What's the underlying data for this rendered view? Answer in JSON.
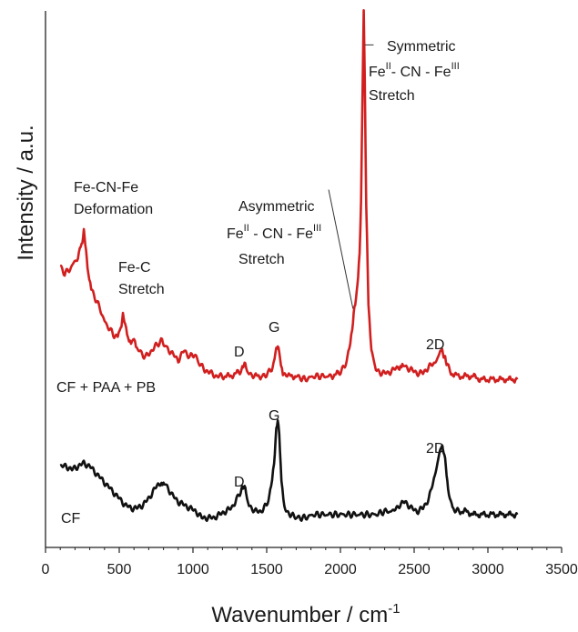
{
  "chart_data": {
    "type": "line",
    "xlabel": "Wavenumber / cm",
    "xlabel_sup": "-1",
    "ylabel": "Intensity / a.u.",
    "xlim": [
      0,
      3500
    ],
    "xticks": [
      "0",
      "500",
      "1000",
      "1500",
      "2000",
      "2500",
      "3000",
      "3500"
    ],
    "y_tick_labels": "none",
    "grid": false,
    "colors": {
      "pb": "#d11f1f",
      "cf": "#111111",
      "axis": "#222222",
      "leader": "#333333"
    },
    "series": [
      {
        "key": "pb",
        "name": "CF + PAA + PB",
        "baseline": 0.46,
        "x": [
          100,
          130,
          160,
          190,
          220,
          245,
          260,
          275,
          290,
          310,
          340,
          370,
          400,
          430,
          460,
          490,
          510,
          525,
          540,
          560,
          580,
          600,
          620,
          650,
          680,
          720,
          760,
          790,
          820,
          860,
          900,
          940,
          980,
          1010,
          1040,
          1080,
          1120,
          1160,
          1200,
          1250,
          1300,
          1330,
          1345,
          1360,
          1380,
          1420,
          1470,
          1510,
          1540,
          1560,
          1575,
          1590,
          1610,
          1650,
          1700,
          1760,
          1820,
          1880,
          1940,
          1990,
          2030,
          2060,
          2080,
          2095,
          2110,
          2120,
          2130,
          2140,
          2150,
          2158,
          2165,
          2175,
          2190,
          2210,
          2240,
          2280,
          2320,
          2360,
          2400,
          2420,
          2440,
          2480,
          2520,
          2560,
          2600,
          2640,
          2670,
          2690,
          2705,
          2720,
          2750,
          2800,
          2850,
          2900,
          2950,
          3000,
          3050,
          3100,
          3150,
          3200
        ],
        "y": [
          0.81,
          0.79,
          0.8,
          0.82,
          0.84,
          0.88,
          0.92,
          0.86,
          0.79,
          0.74,
          0.71,
          0.68,
          0.64,
          0.62,
          0.6,
          0.59,
          0.62,
          0.66,
          0.63,
          0.58,
          0.57,
          0.59,
          0.56,
          0.54,
          0.53,
          0.55,
          0.57,
          0.58,
          0.56,
          0.54,
          0.52,
          0.55,
          0.53,
          0.54,
          0.51,
          0.49,
          0.48,
          0.47,
          0.47,
          0.47,
          0.48,
          0.49,
          0.51,
          0.5,
          0.48,
          0.47,
          0.47,
          0.48,
          0.5,
          0.54,
          0.57,
          0.53,
          0.48,
          0.47,
          0.47,
          0.46,
          0.47,
          0.47,
          0.47,
          0.48,
          0.5,
          0.55,
          0.62,
          0.68,
          0.73,
          0.78,
          0.85,
          1.02,
          1.35,
          1.6,
          1.4,
          1.0,
          0.7,
          0.55,
          0.49,
          0.48,
          0.48,
          0.49,
          0.5,
          0.51,
          0.5,
          0.49,
          0.48,
          0.48,
          0.5,
          0.51,
          0.54,
          0.55,
          0.53,
          0.51,
          0.48,
          0.47,
          0.47,
          0.47,
          0.46,
          0.46,
          0.46,
          0.46,
          0.46,
          0.46
        ]
      },
      {
        "key": "cf",
        "name": "CF",
        "baseline": 0.03,
        "x": [
          100,
          140,
          180,
          220,
          260,
          300,
          340,
          380,
          420,
          460,
          500,
          540,
          580,
          620,
          660,
          700,
          740,
          780,
          800,
          820,
          860,
          900,
          940,
          980,
          1020,
          1060,
          1100,
          1140,
          1180,
          1220,
          1260,
          1300,
          1330,
          1345,
          1360,
          1380,
          1420,
          1460,
          1500,
          1530,
          1550,
          1565,
          1575,
          1585,
          1600,
          1620,
          1660,
          1700,
          1760,
          1820,
          1880,
          1940,
          2000,
          2060,
          2120,
          2180,
          2240,
          2300,
          2360,
          2400,
          2440,
          2480,
          2520,
          2560,
          2600,
          2640,
          2670,
          2690,
          2700,
          2715,
          2730,
          2760,
          2800,
          2850,
          2900,
          2950,
          3000,
          3050,
          3100,
          3150,
          3200
        ],
        "y": [
          0.19,
          0.19,
          0.18,
          0.19,
          0.2,
          0.19,
          0.17,
          0.15,
          0.13,
          0.11,
          0.09,
          0.07,
          0.06,
          0.06,
          0.07,
          0.09,
          0.12,
          0.14,
          0.14,
          0.13,
          0.1,
          0.08,
          0.07,
          0.06,
          0.05,
          0.03,
          0.03,
          0.03,
          0.04,
          0.05,
          0.06,
          0.09,
          0.12,
          0.13,
          0.11,
          0.07,
          0.05,
          0.05,
          0.07,
          0.12,
          0.2,
          0.3,
          0.34,
          0.29,
          0.14,
          0.06,
          0.04,
          0.03,
          0.03,
          0.04,
          0.04,
          0.04,
          0.04,
          0.04,
          0.04,
          0.04,
          0.04,
          0.05,
          0.05,
          0.07,
          0.08,
          0.06,
          0.05,
          0.06,
          0.09,
          0.16,
          0.23,
          0.25,
          0.24,
          0.19,
          0.12,
          0.06,
          0.05,
          0.05,
          0.04,
          0.04,
          0.04,
          0.04,
          0.04,
          0.04,
          0.04
        ]
      }
    ],
    "annotations": {
      "fecnfe_def": [
        "Fe-CN-Fe",
        "Deformation"
      ],
      "fec": [
        "Fe-C",
        "Stretch"
      ],
      "asym_title": "Asymmetric",
      "asym_line": {
        "a": "Fe",
        "a_sup": "II",
        "b": " - CN - Fe",
        "b_sup": "III"
      },
      "asym_stretch": "Stretch",
      "sym_title": "Symmetric",
      "sym_line": {
        "a": "Fe",
        "a_sup": "II",
        "b": "- CN - Fe",
        "b_sup": "III"
      },
      "sym_stretch": "Stretch",
      "pb_D": "D",
      "pb_G": "G",
      "pb_2D": "2D",
      "cf_D": "D",
      "cf_G": "G",
      "cf_2D": "2D"
    }
  }
}
